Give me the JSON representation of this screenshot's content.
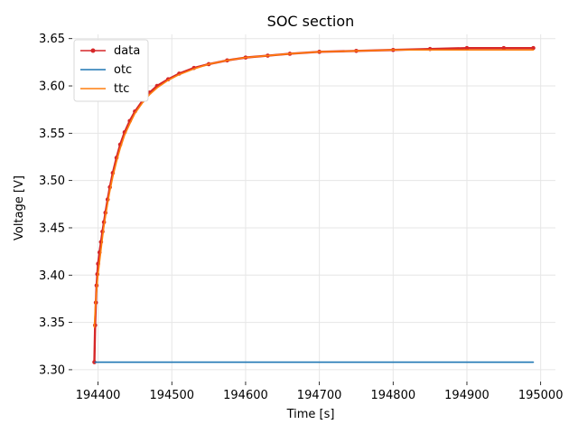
{
  "chart_data": {
    "type": "line",
    "title": "SOC section",
    "xlabel": "Time [s]",
    "ylabel": "Voltage [V]",
    "xlim": [
      194365,
      195020
    ],
    "ylim": [
      3.2875,
      3.6545
    ],
    "xticks": [
      194400,
      194500,
      194600,
      194700,
      194800,
      194900,
      195000
    ],
    "yticks": [
      3.3,
      3.35,
      3.4,
      3.45,
      3.5,
      3.55,
      3.6,
      3.65
    ],
    "xtick_labels": [
      "194400",
      "194500",
      "194600",
      "194700",
      "194800",
      "194900",
      "195000"
    ],
    "ytick_labels": [
      "3.30",
      "3.35",
      "3.40",
      "3.45",
      "3.50",
      "3.55",
      "3.60",
      "3.65"
    ],
    "grid": true,
    "legend": "upper-left",
    "series": [
      {
        "name": "data",
        "color": "#d62728",
        "marker": "circle",
        "x": [
          194395,
          194396,
          194397,
          194398,
          194399,
          194400,
          194402,
          194404,
          194406,
          194408,
          194410,
          194413,
          194416,
          194420,
          194425,
          194430,
          194436,
          194443,
          194450,
          194460,
          194470,
          194480,
          194495,
          194510,
          194530,
          194550,
          194575,
          194600,
          194630,
          194660,
          194700,
          194750,
          194800,
          194850,
          194900,
          194950,
          194990
        ],
        "y": [
          3.308,
          3.347,
          3.371,
          3.389,
          3.401,
          3.412,
          3.424,
          3.435,
          3.446,
          3.456,
          3.466,
          3.48,
          3.493,
          3.508,
          3.524,
          3.538,
          3.551,
          3.563,
          3.573,
          3.584,
          3.593,
          3.6,
          3.607,
          3.613,
          3.619,
          3.623,
          3.627,
          3.63,
          3.632,
          3.634,
          3.636,
          3.637,
          3.638,
          3.639,
          3.64,
          3.64,
          3.64
        ]
      },
      {
        "name": "otc",
        "color": "#1f77b4",
        "marker": "none",
        "x": [
          194396,
          194990
        ],
        "y": [
          3.308,
          3.308
        ]
      },
      {
        "name": "ttc",
        "color": "#ff7f0e",
        "marker": "none",
        "x": [
          194395,
          194396,
          194397,
          194398,
          194399,
          194400,
          194402,
          194404,
          194406,
          194408,
          194410,
          194413,
          194416,
          194420,
          194425,
          194430,
          194436,
          194443,
          194450,
          194460,
          194470,
          194480,
          194495,
          194510,
          194530,
          194550,
          194575,
          194600,
          194630,
          194660,
          194700,
          194750,
          194800,
          194850,
          194900,
          194950,
          194990
        ],
        "y": [
          3.345,
          3.362,
          3.374,
          3.384,
          3.393,
          3.401,
          3.414,
          3.427,
          3.44,
          3.452,
          3.462,
          3.476,
          3.489,
          3.504,
          3.52,
          3.534,
          3.548,
          3.56,
          3.571,
          3.582,
          3.591,
          3.598,
          3.606,
          3.612,
          3.618,
          3.623,
          3.627,
          3.63,
          3.632,
          3.634,
          3.636,
          3.637,
          3.638,
          3.638,
          3.638,
          3.638,
          3.638
        ]
      }
    ]
  }
}
